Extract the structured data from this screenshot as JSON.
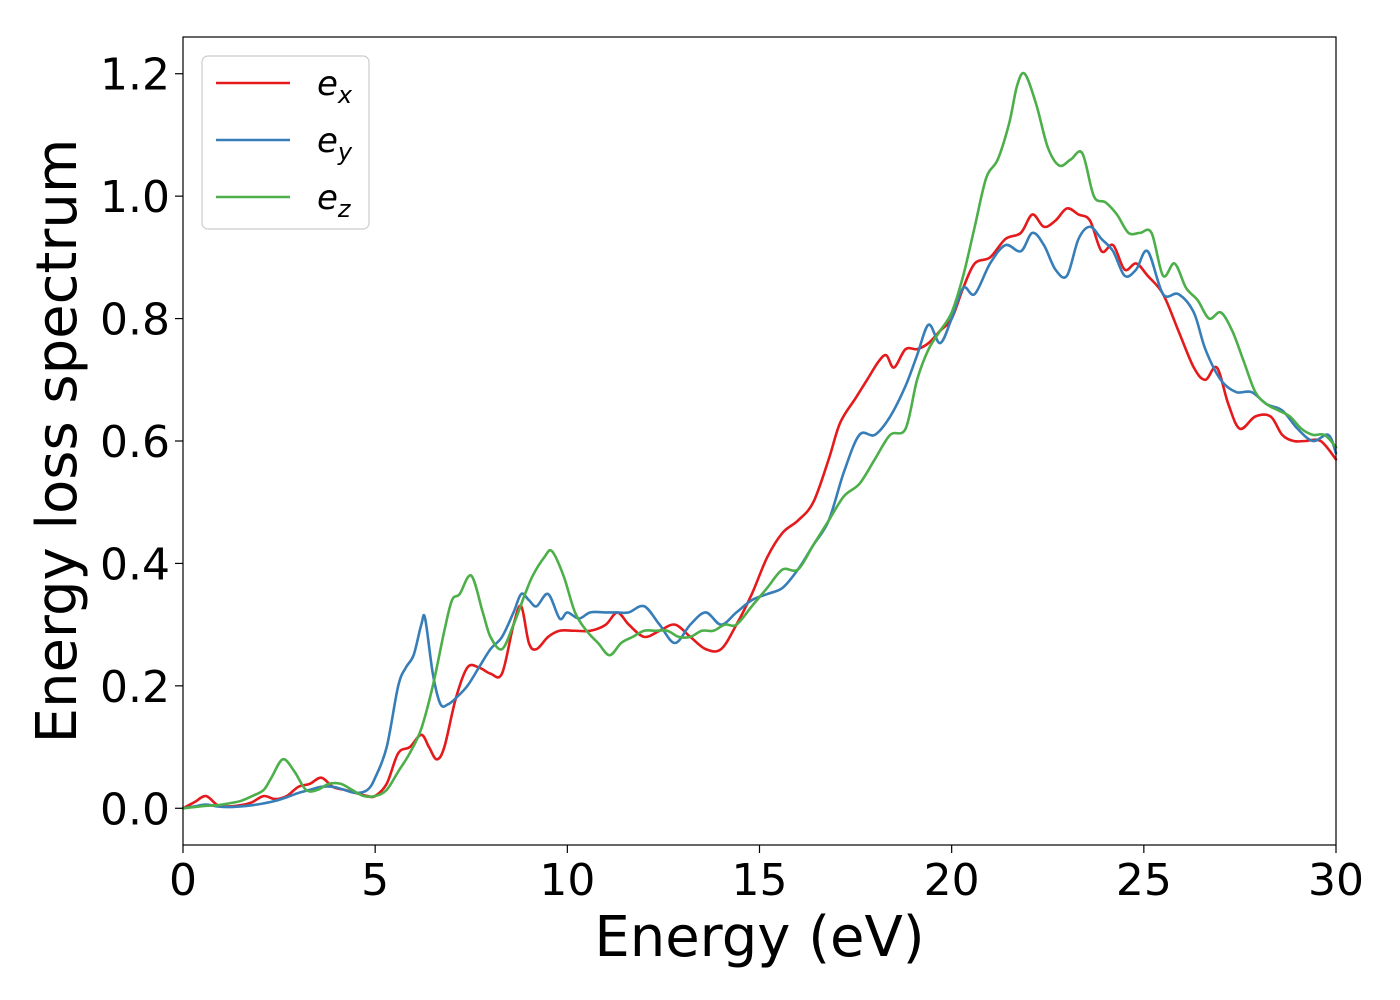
{
  "chart_data": {
    "type": "line",
    "title": "",
    "xlabel": "Energy (eV)",
    "ylabel": "Energy loss spectrum",
    "xlim": [
      0,
      30
    ],
    "ylim": [
      -0.06,
      1.26
    ],
    "xticks": [
      0,
      5,
      10,
      15,
      20,
      25,
      30
    ],
    "xtick_labels": [
      "0",
      "5",
      "10",
      "15",
      "20",
      "25",
      "30"
    ],
    "yticks": [
      0.0,
      0.2,
      0.4,
      0.6,
      0.8,
      1.0,
      1.2
    ],
    "ytick_labels": [
      "0.0",
      "0.2",
      "0.4",
      "0.6",
      "0.8",
      "1.0",
      "1.2"
    ],
    "grid": false,
    "legend_position": "top-left",
    "series": [
      {
        "name": "e",
        "subscript": "x",
        "color": "#e41a1c",
        "x": [
          0,
          0.3,
          0.6,
          0.9,
          1.2,
          1.5,
          1.8,
          2.1,
          2.4,
          2.7,
          3.0,
          3.3,
          3.6,
          3.9,
          4.2,
          4.5,
          4.8,
          5.0,
          5.3,
          5.6,
          5.9,
          6.2,
          6.4,
          6.6,
          6.8,
          7.1,
          7.4,
          7.7,
          8.0,
          8.3,
          8.6,
          8.8,
          9.0,
          9.2,
          9.5,
          9.8,
          10.2,
          10.6,
          11.0,
          11.3,
          11.6,
          12.0,
          12.4,
          12.8,
          13.2,
          13.6,
          14.0,
          14.4,
          14.8,
          15.2,
          15.6,
          16.0,
          16.4,
          16.8,
          17.1,
          17.5,
          17.8,
          18.1,
          18.3,
          18.5,
          18.8,
          19.1,
          19.4,
          19.7,
          20.0,
          20.3,
          20.6,
          21.0,
          21.4,
          21.8,
          22.1,
          22.4,
          22.7,
          23.0,
          23.3,
          23.6,
          23.9,
          24.2,
          24.5,
          24.8,
          25.1,
          25.5,
          25.9,
          26.3,
          26.6,
          26.9,
          27.2,
          27.5,
          27.9,
          28.3,
          28.6,
          28.9,
          29.2,
          29.6,
          30.0
        ],
        "y": [
          0.0,
          0.01,
          0.02,
          0.005,
          0.003,
          0.005,
          0.01,
          0.02,
          0.015,
          0.02,
          0.035,
          0.04,
          0.05,
          0.035,
          0.03,
          0.025,
          0.02,
          0.02,
          0.04,
          0.09,
          0.1,
          0.12,
          0.1,
          0.08,
          0.1,
          0.18,
          0.23,
          0.23,
          0.22,
          0.22,
          0.3,
          0.33,
          0.27,
          0.26,
          0.28,
          0.29,
          0.29,
          0.29,
          0.3,
          0.32,
          0.3,
          0.28,
          0.29,
          0.3,
          0.28,
          0.26,
          0.26,
          0.3,
          0.35,
          0.41,
          0.45,
          0.47,
          0.5,
          0.57,
          0.63,
          0.67,
          0.7,
          0.73,
          0.74,
          0.72,
          0.75,
          0.75,
          0.76,
          0.78,
          0.8,
          0.85,
          0.89,
          0.9,
          0.93,
          0.94,
          0.97,
          0.95,
          0.96,
          0.98,
          0.97,
          0.96,
          0.91,
          0.92,
          0.88,
          0.89,
          0.87,
          0.84,
          0.78,
          0.72,
          0.7,
          0.72,
          0.66,
          0.62,
          0.64,
          0.64,
          0.61,
          0.6,
          0.6,
          0.6,
          0.57
        ]
      },
      {
        "name": "e",
        "subscript": "y",
        "color": "#377eb8",
        "x": [
          0,
          0.3,
          0.6,
          0.9,
          1.2,
          1.5,
          1.8,
          2.1,
          2.4,
          2.7,
          3.0,
          3.3,
          3.6,
          3.9,
          4.2,
          4.5,
          4.8,
          5.0,
          5.3,
          5.6,
          5.8,
          6.0,
          6.2,
          6.3,
          6.5,
          6.7,
          6.9,
          7.1,
          7.4,
          7.7,
          8.0,
          8.3,
          8.6,
          8.8,
          9.0,
          9.2,
          9.5,
          9.8,
          10.0,
          10.3,
          10.6,
          11.0,
          11.3,
          11.6,
          12.0,
          12.4,
          12.8,
          13.2,
          13.6,
          14.0,
          14.4,
          14.8,
          15.2,
          15.6,
          16.0,
          16.4,
          16.8,
          17.2,
          17.6,
          18.0,
          18.4,
          18.8,
          19.1,
          19.4,
          19.7,
          20.0,
          20.3,
          20.6,
          21.0,
          21.4,
          21.8,
          22.1,
          22.4,
          22.7,
          23.0,
          23.3,
          23.6,
          23.9,
          24.2,
          24.5,
          24.8,
          25.1,
          25.5,
          25.9,
          26.3,
          26.6,
          27.0,
          27.4,
          27.8,
          28.2,
          28.6,
          29.0,
          29.4,
          29.8,
          30.0
        ],
        "y": [
          0.0,
          0.003,
          0.006,
          0.003,
          0.002,
          0.003,
          0.005,
          0.008,
          0.012,
          0.018,
          0.025,
          0.03,
          0.035,
          0.035,
          0.03,
          0.025,
          0.03,
          0.05,
          0.1,
          0.2,
          0.23,
          0.25,
          0.3,
          0.31,
          0.22,
          0.17,
          0.17,
          0.18,
          0.2,
          0.23,
          0.26,
          0.28,
          0.32,
          0.35,
          0.34,
          0.33,
          0.35,
          0.31,
          0.32,
          0.31,
          0.32,
          0.32,
          0.32,
          0.32,
          0.33,
          0.3,
          0.27,
          0.3,
          0.32,
          0.3,
          0.32,
          0.34,
          0.35,
          0.36,
          0.39,
          0.43,
          0.47,
          0.55,
          0.61,
          0.61,
          0.64,
          0.69,
          0.74,
          0.79,
          0.76,
          0.8,
          0.85,
          0.84,
          0.89,
          0.92,
          0.91,
          0.94,
          0.92,
          0.88,
          0.87,
          0.93,
          0.95,
          0.93,
          0.91,
          0.87,
          0.88,
          0.91,
          0.84,
          0.84,
          0.81,
          0.75,
          0.7,
          0.68,
          0.68,
          0.66,
          0.65,
          0.62,
          0.6,
          0.61,
          0.58
        ]
      },
      {
        "name": "e",
        "subscript": "z",
        "color": "#4daf4a",
        "x": [
          0,
          0.3,
          0.6,
          0.9,
          1.2,
          1.5,
          1.8,
          2.1,
          2.3,
          2.6,
          2.9,
          3.2,
          3.5,
          3.8,
          4.1,
          4.4,
          4.7,
          5.0,
          5.3,
          5.6,
          5.9,
          6.2,
          6.5,
          6.8,
          7.0,
          7.2,
          7.5,
          7.8,
          8.0,
          8.3,
          8.6,
          8.9,
          9.1,
          9.4,
          9.6,
          9.9,
          10.2,
          10.5,
          10.8,
          11.1,
          11.4,
          11.7,
          12.0,
          12.3,
          12.6,
          12.9,
          13.2,
          13.5,
          13.8,
          14.1,
          14.4,
          14.8,
          15.2,
          15.6,
          16.0,
          16.4,
          16.8,
          17.2,
          17.6,
          18.0,
          18.4,
          18.8,
          19.1,
          19.4,
          19.7,
          20.0,
          20.3,
          20.6,
          20.9,
          21.2,
          21.5,
          21.7,
          21.9,
          22.2,
          22.5,
          22.8,
          23.1,
          23.4,
          23.7,
          24.0,
          24.3,
          24.6,
          24.9,
          25.2,
          25.5,
          25.8,
          26.1,
          26.4,
          26.7,
          27.0,
          27.3,
          27.6,
          27.9,
          28.2,
          28.5,
          28.8,
          29.1,
          29.4,
          29.7,
          30.0
        ],
        "y": [
          0.0,
          0.002,
          0.004,
          0.005,
          0.008,
          0.012,
          0.02,
          0.03,
          0.05,
          0.08,
          0.06,
          0.03,
          0.03,
          0.04,
          0.04,
          0.03,
          0.02,
          0.02,
          0.03,
          0.06,
          0.09,
          0.13,
          0.2,
          0.29,
          0.34,
          0.35,
          0.38,
          0.32,
          0.28,
          0.26,
          0.3,
          0.35,
          0.38,
          0.41,
          0.42,
          0.38,
          0.32,
          0.29,
          0.27,
          0.25,
          0.27,
          0.28,
          0.29,
          0.29,
          0.29,
          0.28,
          0.28,
          0.29,
          0.29,
          0.3,
          0.3,
          0.33,
          0.36,
          0.39,
          0.39,
          0.43,
          0.47,
          0.51,
          0.53,
          0.57,
          0.61,
          0.62,
          0.7,
          0.75,
          0.78,
          0.81,
          0.87,
          0.95,
          1.03,
          1.06,
          1.12,
          1.18,
          1.2,
          1.15,
          1.08,
          1.05,
          1.06,
          1.07,
          1.0,
          0.99,
          0.97,
          0.94,
          0.94,
          0.94,
          0.87,
          0.89,
          0.85,
          0.83,
          0.8,
          0.81,
          0.78,
          0.73,
          0.68,
          0.66,
          0.65,
          0.64,
          0.62,
          0.61,
          0.61,
          0.59
        ]
      }
    ]
  }
}
